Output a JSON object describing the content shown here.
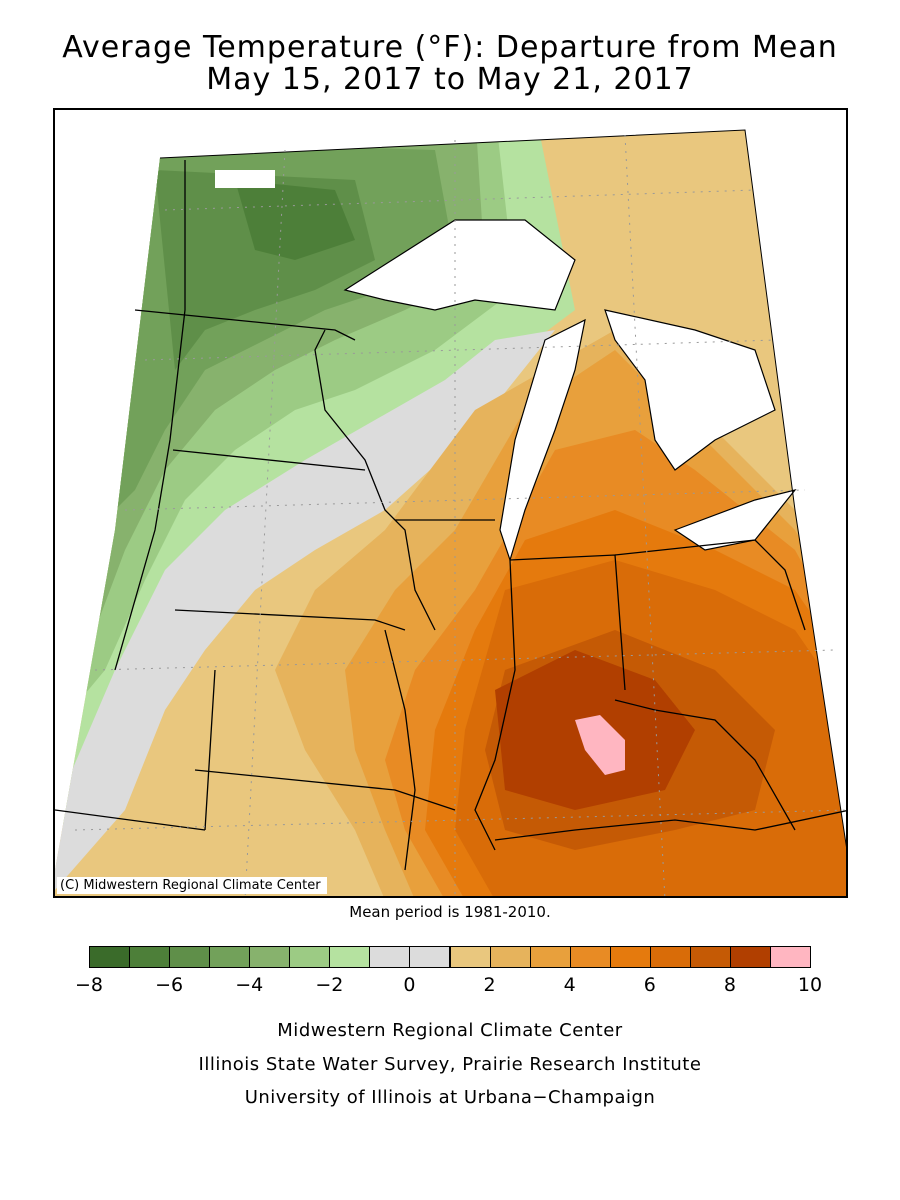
{
  "title": {
    "line1": "Average Temperature (°F): Departure from Mean",
    "line2": "May 15, 2017 to May 21, 2017"
  },
  "map": {
    "copyright": "(C) Midwestern Regional Climate Center",
    "lake_color": "#ffffff",
    "boundary_color": "#000000"
  },
  "mean_note": "Mean period is 1981-2010.",
  "legend": {
    "unit": "°F",
    "bins": [
      {
        "from": -8,
        "to": -7,
        "color": "#3a6b2a"
      },
      {
        "from": -7,
        "to": -6,
        "color": "#4d7f39"
      },
      {
        "from": -6,
        "to": -5,
        "color": "#5f8f49"
      },
      {
        "from": -5,
        "to": -4,
        "color": "#72a15a"
      },
      {
        "from": -4,
        "to": -3,
        "color": "#87b26d"
      },
      {
        "from": -3,
        "to": -2,
        "color": "#9ccb84"
      },
      {
        "from": -2,
        "to": -1,
        "color": "#b5e2a0"
      },
      {
        "from": -1,
        "to": 0,
        "color": "#dcdcdc"
      },
      {
        "from": 0,
        "to": 1,
        "color": "#dcdcdc"
      },
      {
        "from": 1,
        "to": 2,
        "color": "#e9c77e"
      },
      {
        "from": 2,
        "to": 3,
        "color": "#e6b35c"
      },
      {
        "from": 3,
        "to": 4,
        "color": "#e8a03c"
      },
      {
        "from": 4,
        "to": 5,
        "color": "#e88b24"
      },
      {
        "from": 5,
        "to": 6,
        "color": "#e57a0d"
      },
      {
        "from": 6,
        "to": 7,
        "color": "#d96c08"
      },
      {
        "from": 7,
        "to": 8,
        "color": "#c55a05"
      },
      {
        "from": 8,
        "to": 9,
        "color": "#b13f00"
      },
      {
        "from": 9,
        "to": 10,
        "color": "#ffb6c1"
      }
    ],
    "tick_labels": [
      "−8",
      "−6",
      "−4",
      "−2",
      "0",
      "2",
      "4",
      "6",
      "8",
      "10"
    ]
  },
  "credits": [
    "Midwestern Regional Climate Center",
    "Illinois State Water Survey, Prairie Research Institute",
    "University of Illinois at Urbana−Champaign"
  ]
}
